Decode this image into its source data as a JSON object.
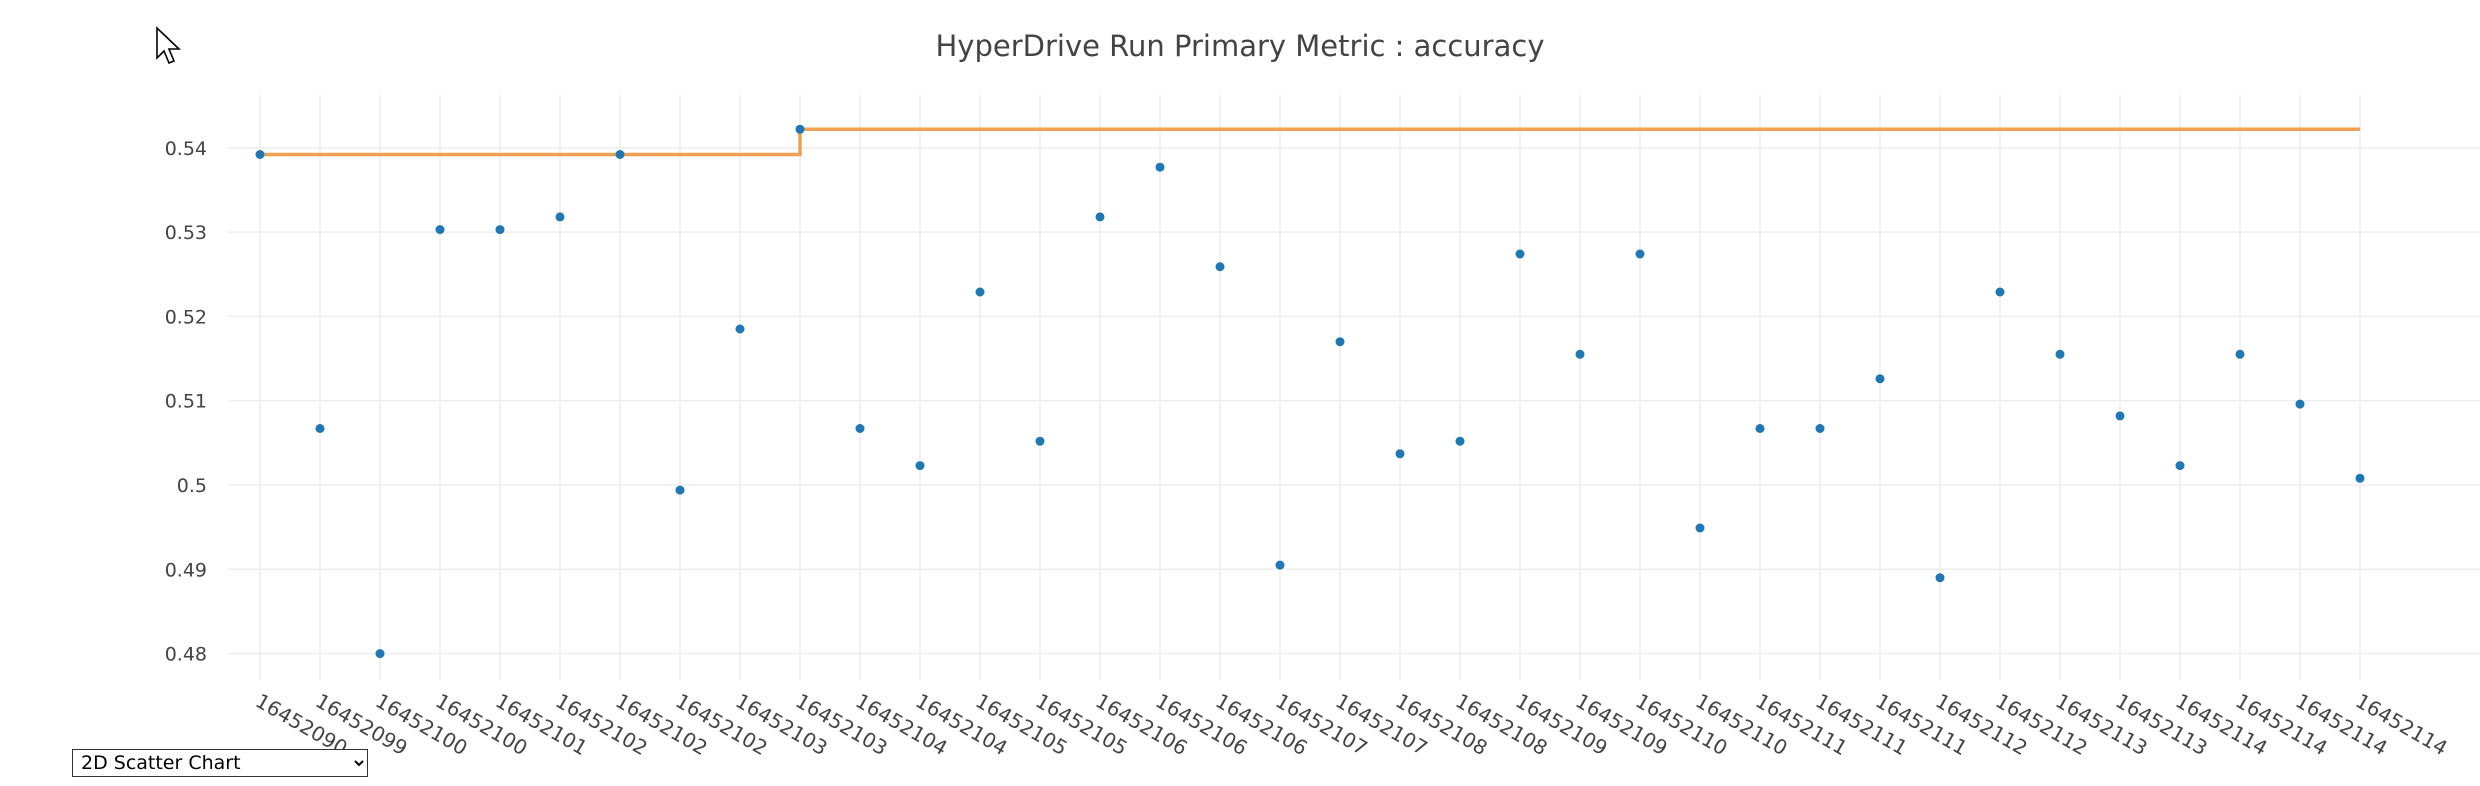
{
  "chart_type_select": {
    "selected": "2D Scatter Chart",
    "options": [
      "2D Scatter Chart"
    ]
  },
  "chart_data": {
    "type": "scatter",
    "title": "HyperDrive Run Primary Metric : accuracy",
    "xlabel": "",
    "ylabel": "",
    "ylim": [
      0.475,
      0.545
    ],
    "y_ticks": [
      0.48,
      0.49,
      0.5,
      0.51,
      0.52,
      0.53,
      0.54
    ],
    "y_tick_labels": [
      "0.48",
      "0.49",
      "0.5",
      "0.51",
      "0.52",
      "0.53",
      "0.54"
    ],
    "grid": true,
    "x_labels": [
      "16452090",
      "16452099",
      "16452100",
      "16452100",
      "16452101",
      "16452102",
      "16452102",
      "16452102",
      "16452103",
      "16452103",
      "16452104",
      "16452104",
      "16452105",
      "16452105",
      "16452106",
      "16452106",
      "16452106",
      "16452107",
      "16452107",
      "16452108",
      "16452108",
      "16452109",
      "16452109",
      "16452110",
      "16452110",
      "16452111",
      "16452111",
      "16452111",
      "16452112",
      "16452112",
      "16452113",
      "16452113",
      "16452114",
      "16452114",
      "16452114",
      "16452114"
    ],
    "series": [
      {
        "type": "scatter",
        "color": "#1f77b4",
        "values": [
          0.5392,
          0.5067,
          0.48,
          0.5303,
          0.5303,
          0.5318,
          0.5392,
          0.4994,
          0.5185,
          0.5422,
          0.5067,
          0.5023,
          0.5229,
          0.5052,
          0.5318,
          0.5377,
          0.5259,
          0.4905,
          0.517,
          0.5037,
          0.5052,
          0.5274,
          0.5155,
          0.5274,
          0.4949,
          0.5067,
          0.5067,
          0.5126,
          0.489,
          0.5229,
          0.5155,
          0.5082,
          0.5023,
          0.5155,
          0.5096,
          0.5008
        ]
      },
      {
        "type": "line",
        "shape": "step",
        "color": "#f0a050",
        "values": [
          0.5392,
          0.5392,
          0.5392,
          0.5392,
          0.5392,
          0.5392,
          0.5392,
          0.5392,
          0.5392,
          0.5422,
          0.5422,
          0.5422,
          0.5422,
          0.5422,
          0.5422,
          0.5422,
          0.5422,
          0.5422,
          0.5422,
          0.5422,
          0.5422,
          0.5422,
          0.5422,
          0.5422,
          0.5422,
          0.5422,
          0.5422,
          0.5422,
          0.5422,
          0.5422,
          0.5422,
          0.5422,
          0.5422,
          0.5422,
          0.5422,
          0.5422
        ]
      }
    ]
  }
}
